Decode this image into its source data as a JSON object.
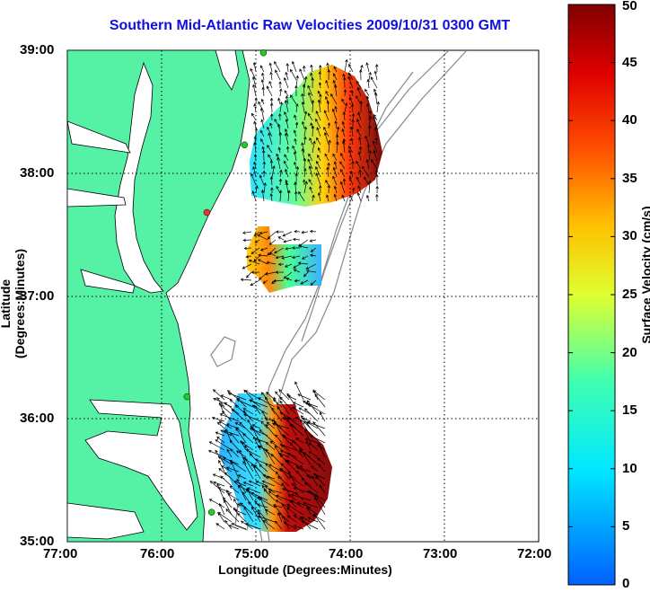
{
  "title": "Southern Mid-Atlantic Raw Velocities 2009/10/31 0300 GMT",
  "x_axis": {
    "label": "Longitude (Degrees:Minutes)",
    "ticks": [
      "77:00",
      "76:00",
      "75:00",
      "74:00",
      "73:00",
      "72:00"
    ]
  },
  "y_axis": {
    "label": "Latitude (Degrees:Minutes)",
    "ticks": [
      "39:00",
      "38:00",
      "37:00",
      "36:00",
      "35:00"
    ]
  },
  "colorbar": {
    "label": "Surface Velocity (cm/s)",
    "ticks": [
      "50",
      "45",
      "40",
      "35",
      "30",
      "25",
      "20",
      "15",
      "10",
      "5",
      "0"
    ],
    "min": 0,
    "max": 50
  },
  "map": {
    "land_color": "#55f2a6",
    "water_color": "#ffffff",
    "grid": "dotted",
    "lon_range": [
      -77,
      -72
    ],
    "lat_range": [
      35,
      39
    ],
    "stations": [
      {
        "lon": -74.92,
        "lat": 38.98,
        "color": "#22cc22"
      },
      {
        "lon": -75.12,
        "lat": 38.23,
        "color": "#22cc22"
      },
      {
        "lon": -75.52,
        "lat": 37.68,
        "color": "#ee3333"
      },
      {
        "lon": -75.73,
        "lat": 36.18,
        "color": "#22cc22"
      },
      {
        "lon": -75.47,
        "lat": 35.24,
        "color": "#22cc22"
      }
    ]
  },
  "colors": {
    "title": "#1010e0",
    "grid": "#000000",
    "bathymetry": "#888888"
  }
}
